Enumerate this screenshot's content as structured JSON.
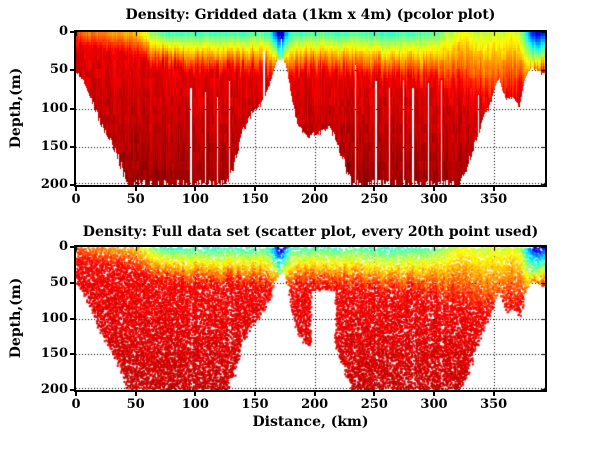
{
  "figure": {
    "background": "#ffffff",
    "border_color": "#000000",
    "text_color": "#000000"
  },
  "chart_data": [
    {
      "type": "heatmap",
      "title": "Density: Gridded data (1km x 4m) (pcolor plot)",
      "xlabel": "",
      "ylabel": "Depth,(m)",
      "xlim": [
        0,
        393
      ],
      "ylim": [
        200,
        0
      ],
      "y_axis_reversed": true,
      "xticks": [
        0,
        50,
        100,
        150,
        200,
        250,
        300,
        350
      ],
      "yticks": [
        0,
        50,
        100,
        150,
        200
      ],
      "grid": "dotted",
      "colormap": "jet",
      "no_data_color": "#ffffff",
      "description": "Ocean density section vs distance and depth; grid cells 1 km x 4 m; white regions = seafloor / no data; blue=low density, dark red=high density.",
      "seafloor_depth_profile_km_m": [
        [
          0,
          52
        ],
        [
          6,
          62
        ],
        [
          12,
          85
        ],
        [
          20,
          118
        ],
        [
          28,
          142
        ],
        [
          36,
          168
        ],
        [
          43,
          200
        ],
        [
          125,
          200
        ],
        [
          132,
          172
        ],
        [
          139,
          132
        ],
        [
          147,
          106
        ],
        [
          154,
          96
        ],
        [
          160,
          78
        ],
        [
          165,
          52
        ],
        [
          168,
          38
        ],
        [
          172,
          34
        ],
        [
          175,
          40
        ],
        [
          178,
          62
        ],
        [
          182,
          100
        ],
        [
          186,
          122
        ],
        [
          193,
          134
        ],
        [
          203,
          132
        ],
        [
          210,
          122
        ],
        [
          216,
          136
        ],
        [
          222,
          160
        ],
        [
          228,
          188
        ],
        [
          232,
          200
        ],
        [
          322,
          200
        ],
        [
          327,
          178
        ],
        [
          333,
          148
        ],
        [
          339,
          122
        ],
        [
          346,
          96
        ],
        [
          351,
          72
        ],
        [
          354,
          58
        ],
        [
          357,
          76
        ],
        [
          361,
          88
        ],
        [
          366,
          82
        ],
        [
          371,
          96
        ],
        [
          374,
          72
        ],
        [
          377,
          56
        ],
        [
          381,
          46
        ],
        [
          386,
          50
        ],
        [
          393,
          56
        ]
      ],
      "surface_density_level_km_t": [
        [
          0,
          0.78
        ],
        [
          8,
          0.76
        ],
        [
          18,
          0.73
        ],
        [
          30,
          0.71
        ],
        [
          42,
          0.69
        ],
        [
          52,
          0.66
        ],
        [
          58,
          0.58
        ],
        [
          64,
          0.5
        ],
        [
          72,
          0.44
        ],
        [
          85,
          0.41
        ],
        [
          100,
          0.43
        ],
        [
          115,
          0.41
        ],
        [
          130,
          0.43
        ],
        [
          145,
          0.42
        ],
        [
          155,
          0.46
        ],
        [
          162,
          0.4
        ],
        [
          166,
          0.22
        ],
        [
          169,
          0.07
        ],
        [
          173,
          0.06
        ],
        [
          176,
          0.28
        ],
        [
          180,
          0.44
        ],
        [
          190,
          0.42
        ],
        [
          205,
          0.44
        ],
        [
          220,
          0.42
        ],
        [
          235,
          0.45
        ],
        [
          250,
          0.42
        ],
        [
          262,
          0.4
        ],
        [
          275,
          0.43
        ],
        [
          290,
          0.44
        ],
        [
          302,
          0.47
        ],
        [
          310,
          0.53
        ],
        [
          318,
          0.58
        ],
        [
          326,
          0.61
        ],
        [
          334,
          0.57
        ],
        [
          342,
          0.55
        ],
        [
          350,
          0.59
        ],
        [
          358,
          0.56
        ],
        [
          365,
          0.61
        ],
        [
          370,
          0.57
        ],
        [
          374,
          0.48
        ],
        [
          378,
          0.32
        ],
        [
          382,
          0.12
        ],
        [
          386,
          0.07
        ],
        [
          390,
          0.1
        ],
        [
          393,
          0.16
        ]
      ],
      "pycnocline_depth_km_m": [
        [
          0,
          18
        ],
        [
          40,
          28
        ],
        [
          60,
          42
        ],
        [
          100,
          50
        ],
        [
          150,
          52
        ],
        [
          170,
          60
        ],
        [
          200,
          52
        ],
        [
          240,
          58
        ],
        [
          280,
          62
        ],
        [
          310,
          74
        ],
        [
          335,
          86
        ],
        [
          355,
          92
        ],
        [
          372,
          78
        ],
        [
          385,
          60
        ],
        [
          393,
          55
        ]
      ],
      "data_gap_lines_km_startdepth": [
        [
          96,
          72
        ],
        [
          108,
          78
        ],
        [
          118,
          84
        ],
        [
          128,
          64
        ],
        [
          157,
          24
        ],
        [
          171.5,
          8
        ],
        [
          234,
          42
        ],
        [
          251,
          64
        ],
        [
          262,
          72
        ],
        [
          274,
          62
        ],
        [
          282,
          72
        ],
        [
          295,
          66
        ],
        [
          306,
          62
        ],
        [
          337,
          82
        ]
      ]
    },
    {
      "type": "scatter",
      "title": "Density: Full data set (scatter plot, every 20th point used)",
      "xlabel": "Distance, (km)",
      "ylabel": "Depth,(m)",
      "xlim": [
        0,
        393
      ],
      "ylim": [
        200,
        0
      ],
      "y_axis_reversed": true,
      "xticks": [
        0,
        50,
        100,
        150,
        200,
        250,
        300,
        350
      ],
      "yticks": [
        0,
        50,
        100,
        150,
        200
      ],
      "grid": "dotted",
      "colormap": "jet",
      "marker_px": 2,
      "field_source": "same density field and seafloor profile as gridded plot (chart_data[0])",
      "scatter_gap_region_km": {
        "from": 196,
        "to": 217,
        "floor_m": 58
      }
    }
  ]
}
